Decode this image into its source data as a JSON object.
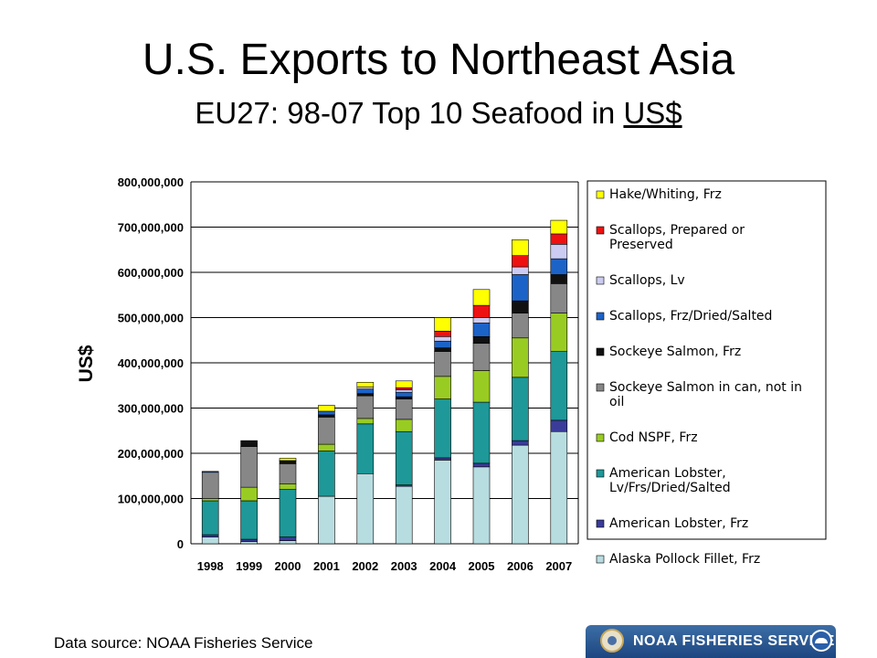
{
  "slide": {
    "title": "U.S. Exports to Northeast Asia",
    "subtitle_prefix": "EU27: 98-07 Top 10 Seafood in ",
    "subtitle_underlined": "US$",
    "source": "Data source: NOAA Fisheries Service",
    "banner_text": "NOAA FISHERIES SERVICE",
    "banner_colors": [
      "#1d4680",
      "#3d6ea6"
    ]
  },
  "chart_data": {
    "type": "bar",
    "stacked": true,
    "ylabel": "US$",
    "ylim": [
      0,
      800000000
    ],
    "yticks": [
      {
        "value": 0,
        "label": "0"
      },
      {
        "value": 100000000,
        "label": "100,000,000"
      },
      {
        "value": 200000000,
        "label": "200,000,000"
      },
      {
        "value": 300000000,
        "label": "300,000,000"
      },
      {
        "value": 400000000,
        "label": "400,000,000"
      },
      {
        "value": 500000000,
        "label": "500,000,000"
      },
      {
        "value": 600000000,
        "label": "600,000,000"
      },
      {
        "value": 700000000,
        "label": "700,000,000"
      },
      {
        "value": 800000000,
        "label": "800,000,000"
      }
    ],
    "grid": true,
    "legend_position": "right",
    "categories": [
      "1998",
      "1999",
      "2000",
      "2001",
      "2002",
      "2003",
      "2004",
      "2005",
      "2006",
      "2007"
    ],
    "series": [
      {
        "name": "Alaska Pollock Fillet, Frz",
        "color": "#b8dde1",
        "values": [
          15000000,
          5000000,
          7000000,
          105000000,
          155000000,
          127000000,
          185000000,
          170000000,
          218000000,
          248000000
        ]
      },
      {
        "name": "American Lobster, Frz",
        "color": "#3b3b9a",
        "values": [
          5000000,
          5000000,
          8000000,
          0,
          0,
          3000000,
          5000000,
          8000000,
          10000000,
          25000000
        ]
      },
      {
        "name": "American Lobster, Lv/Frs/Dried/Salted",
        "color": "#1e9898",
        "values": [
          75000000,
          85000000,
          105000000,
          100000000,
          110000000,
          118000000,
          130000000,
          135000000,
          140000000,
          152000000
        ]
      },
      {
        "name": "Cod NSPF, Frz",
        "color": "#99cc22",
        "values": [
          5000000,
          30000000,
          12000000,
          15000000,
          12000000,
          27000000,
          50000000,
          70000000,
          87000000,
          85000000
        ]
      },
      {
        "name": "Sockeye Salmon in can, not in oil",
        "color": "#878787",
        "values": [
          58000000,
          90000000,
          45000000,
          60000000,
          50000000,
          45000000,
          55000000,
          60000000,
          55000000,
          65000000
        ]
      },
      {
        "name": "Sockeye Salmon, Frz",
        "color": "#111111",
        "values": [
          0,
          13000000,
          5000000,
          5000000,
          5000000,
          5000000,
          8000000,
          15000000,
          27000000,
          20000000
        ]
      },
      {
        "name": "Scallops, Frz/Dried/Salted",
        "color": "#1c63c8",
        "values": [
          2000000,
          0,
          2000000,
          8000000,
          10000000,
          10000000,
          15000000,
          30000000,
          58000000,
          35000000
        ]
      },
      {
        "name": "Scallops, Lv",
        "color": "#ccccf2",
        "values": [
          0,
          0,
          0,
          0,
          5000000,
          5000000,
          10000000,
          12000000,
          17000000,
          32000000
        ]
      },
      {
        "name": "Scallops, Prepared or Preserved",
        "color": "#ee1111",
        "values": [
          0,
          0,
          0,
          0,
          0,
          5000000,
          12000000,
          27000000,
          25000000,
          23000000
        ]
      },
      {
        "name": "Hake/Whiting, Frz",
        "color": "#ffff00",
        "values": [
          0,
          0,
          5000000,
          13000000,
          10000000,
          15000000,
          30000000,
          35000000,
          35000000,
          30000000
        ]
      }
    ]
  }
}
